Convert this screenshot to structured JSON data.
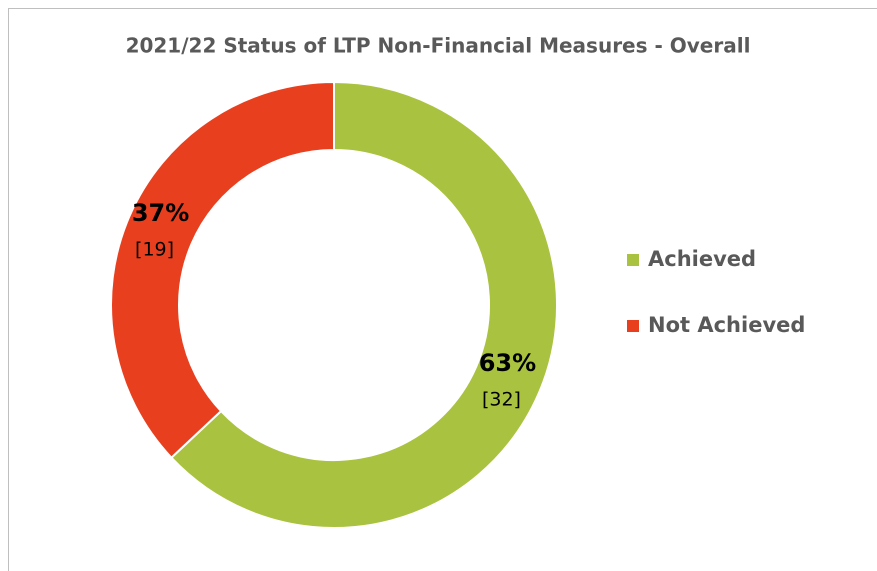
{
  "chart_data": {
    "type": "donut",
    "title": "2021/22 Status of LTP Non-Financial Measures - Overall",
    "categories": [
      "Achieved",
      "Not Achieved"
    ],
    "values": [
      63,
      37
    ],
    "value_labels": [
      "63%",
      "37%"
    ],
    "counts": [
      32,
      19
    ],
    "count_labels": [
      "[32]",
      "[19]"
    ],
    "colors": [
      "#a9c23f",
      "#e8401f"
    ],
    "legend": "right"
  }
}
